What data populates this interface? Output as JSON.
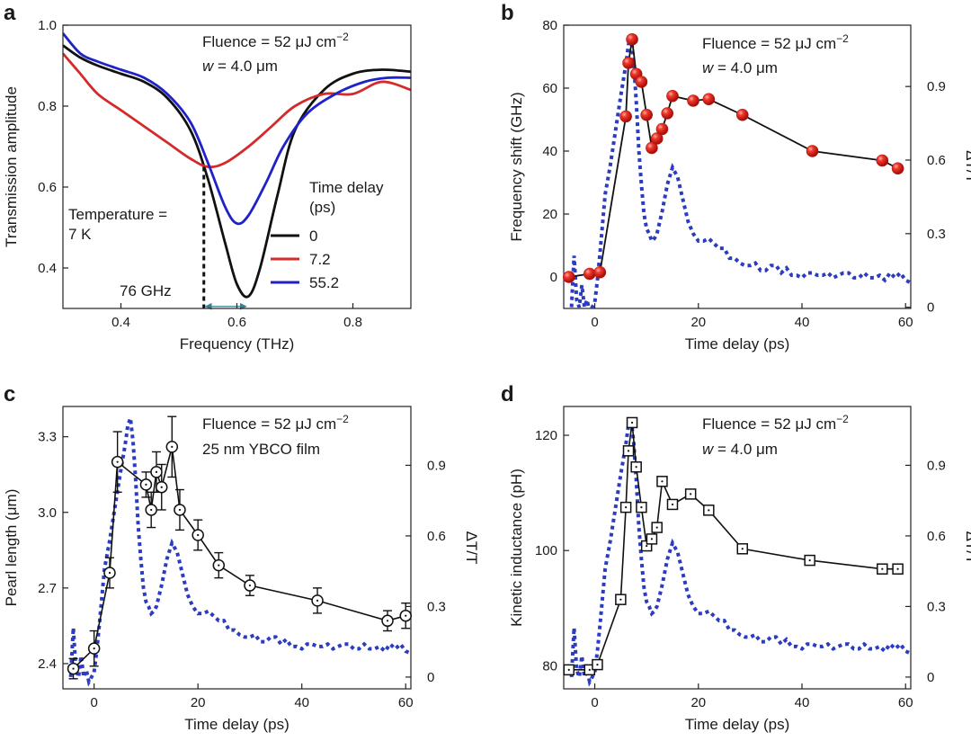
{
  "colors": {
    "black": "#111111",
    "red": "#d42a2a",
    "red_marker": "#e8261f",
    "blue": "#1f22c8",
    "dotted_blue": "#2b3cc0",
    "axis": "#222222"
  },
  "chart_data": [
    {
      "panel": "a",
      "type": "line",
      "xlabel": "Frequency (THz)",
      "ylabel": "Transmission amplitude",
      "xlim": [
        0.3,
        0.9
      ],
      "ylim": [
        0.3,
        1.0
      ],
      "xticks": [
        0.4,
        0.6,
        0.8
      ],
      "xtick_labels": [
        "0.4",
        "0.6",
        "0.8"
      ],
      "yticks": [
        0.4,
        0.6,
        0.8,
        1.0
      ],
      "ytick_labels": [
        "0.4",
        "0.6",
        "0.8",
        "1.0"
      ],
      "annotations": {
        "fluence_prefix": "Fluence = 52 μJ cm",
        "fluence_exp": "−2",
        "width_var": "w",
        "width_rest": " = 4.0 μm",
        "temperature_line1": "Temperature =",
        "temperature_line2": "7 K",
        "shift_label": "76 GHz"
      },
      "legend": {
        "title_line1": "Time delay",
        "title_line2": "(ps)",
        "entries": [
          "0",
          "7.2",
          "55.2"
        ],
        "placement": "right"
      },
      "series": [
        {
          "name": "0",
          "color": "black",
          "x": [
            0.3,
            0.33,
            0.36,
            0.4,
            0.44,
            0.48,
            0.52,
            0.55,
            0.58,
            0.6,
            0.62,
            0.64,
            0.67,
            0.7,
            0.75,
            0.8,
            0.85,
            0.9
          ],
          "y": [
            0.95,
            0.92,
            0.9,
            0.88,
            0.86,
            0.82,
            0.74,
            0.62,
            0.46,
            0.36,
            0.33,
            0.4,
            0.58,
            0.74,
            0.84,
            0.88,
            0.89,
            0.885
          ]
        },
        {
          "name": "7.2",
          "color": "red",
          "x": [
            0.3,
            0.33,
            0.36,
            0.4,
            0.44,
            0.48,
            0.52,
            0.55,
            0.58,
            0.62,
            0.66,
            0.7,
            0.75,
            0.8,
            0.85,
            0.9
          ],
          "y": [
            0.93,
            0.88,
            0.83,
            0.79,
            0.75,
            0.71,
            0.67,
            0.65,
            0.66,
            0.7,
            0.75,
            0.8,
            0.83,
            0.83,
            0.86,
            0.84
          ]
        },
        {
          "name": "55.2",
          "color": "blue",
          "x": [
            0.3,
            0.33,
            0.36,
            0.4,
            0.44,
            0.48,
            0.52,
            0.55,
            0.58,
            0.6,
            0.62,
            0.65,
            0.68,
            0.72,
            0.77,
            0.82,
            0.86,
            0.9
          ],
          "y": [
            0.98,
            0.93,
            0.91,
            0.89,
            0.87,
            0.83,
            0.76,
            0.66,
            0.55,
            0.51,
            0.53,
            0.61,
            0.7,
            0.78,
            0.83,
            0.86,
            0.87,
            0.87
          ]
        }
      ],
      "markers": {
        "dashed_x": 0.543,
        "dashed_y_top": 0.65,
        "arrow_from": 0.543,
        "arrow_to": 0.619,
        "arrow_y": 0.305
      }
    },
    {
      "panel": "b",
      "type": "scatter+line",
      "xlabel": "Time delay (ps)",
      "ylabel": "Frequency shift (GHz)",
      "y2label": "ΔT/T",
      "xlim": [
        -6,
        61
      ],
      "ylim": [
        -10,
        80
      ],
      "y2lim": [
        -0.005,
        1.15
      ],
      "xticks": [
        0,
        20,
        40,
        60
      ],
      "xtick_labels": [
        "0",
        "20",
        "40",
        "60"
      ],
      "yticks": [
        0,
        20,
        40,
        60,
        80
      ],
      "ytick_labels": [
        "0",
        "20",
        "40",
        "60",
        "80"
      ],
      "y2ticks": [
        0,
        0.3,
        0.6,
        0.9
      ],
      "y2tick_labels": [
        "0",
        "0.3",
        "0.6",
        "0.9"
      ],
      "annotations": {
        "fluence_prefix": "Fluence = 52 μJ cm",
        "fluence_exp": "−2",
        "width_var": "w",
        "width_rest": " = 4.0 μm"
      },
      "series": [
        {
          "name": "Frequency shift",
          "marker": "red-sphere",
          "x": [
            -5,
            -1,
            1,
            6,
            6.5,
            7.2,
            8,
            9,
            10,
            11,
            12,
            13,
            14,
            15,
            19,
            22,
            28.5,
            42,
            55.5,
            58.5
          ],
          "y": [
            0,
            1,
            1.5,
            51,
            68,
            75.5,
            64.5,
            62,
            51.5,
            41,
            44,
            47,
            52,
            57.5,
            56,
            56.5,
            51.5,
            40,
            37,
            34.5
          ]
        }
      ],
      "dT_T": {
        "x": [
          -4.5,
          -4,
          -3.5,
          -3,
          -2.5,
          -2,
          -1.5,
          -1,
          -0.5,
          0,
          0.5,
          1,
          1.5,
          2,
          3,
          4,
          5,
          6,
          6.5,
          7,
          7.5,
          8,
          8.5,
          9,
          9.5,
          10,
          10.5,
          11,
          11.5,
          12,
          13,
          14,
          15,
          16,
          17,
          18,
          19,
          20,
          21,
          22,
          23,
          24,
          25,
          26,
          27,
          28,
          29,
          30,
          31,
          32,
          33,
          34,
          35,
          36,
          37,
          38,
          39,
          40,
          41,
          42,
          43,
          44,
          45,
          46,
          47,
          48,
          49,
          50,
          51,
          52,
          53,
          54,
          55,
          56,
          57,
          58,
          59,
          60,
          61
        ],
        "y": [
          0.0,
          0.21,
          0.03,
          0.0,
          0.09,
          0.0,
          0.03,
          -0.02,
          0.0,
          0.02,
          0.11,
          0.22,
          0.34,
          0.46,
          0.58,
          0.72,
          0.86,
          0.99,
          1.07,
          1.1,
          1.0,
          0.84,
          0.64,
          0.5,
          0.38,
          0.32,
          0.3,
          0.27,
          0.28,
          0.3,
          0.39,
          0.5,
          0.57,
          0.53,
          0.44,
          0.35,
          0.3,
          0.27,
          0.27,
          0.28,
          0.26,
          0.24,
          0.24,
          0.2,
          0.2,
          0.18,
          0.17,
          0.17,
          0.18,
          0.15,
          0.15,
          0.17,
          0.17,
          0.14,
          0.16,
          0.13,
          0.13,
          0.12,
          0.14,
          0.14,
          0.13,
          0.13,
          0.14,
          0.12,
          0.13,
          0.14,
          0.14,
          0.12,
          0.12,
          0.14,
          0.12,
          0.12,
          0.13,
          0.11,
          0.14,
          0.12,
          0.14,
          0.11,
          0.1
        ]
      }
    },
    {
      "panel": "c",
      "type": "scatter+line",
      "xlabel": "Time delay (ps)",
      "ylabel": "Pearl length (μm)",
      "y2label": "ΔT/T",
      "xlim": [
        -6,
        61
      ],
      "ylim": [
        2.3,
        3.42
      ],
      "y2lim": [
        -0.05,
        1.15
      ],
      "xticks": [
        0,
        20,
        40,
        60
      ],
      "xtick_labels": [
        "0",
        "20",
        "40",
        "60"
      ],
      "yticks": [
        2.4,
        2.7,
        3.0,
        3.3
      ],
      "ytick_labels": [
        "2.4",
        "2.7",
        "3.0",
        "3.3"
      ],
      "y2ticks": [
        0,
        0.3,
        0.6,
        0.9
      ],
      "y2tick_labels": [
        "0",
        "0.3",
        "0.6",
        "0.9"
      ],
      "annotations": {
        "fluence_prefix": "Fluence = 52 μJ cm",
        "fluence_exp": "−2",
        "film": "25 nm YBCO film"
      },
      "series": [
        {
          "name": "Pearl length",
          "marker": "open-circle",
          "x": [
            -4,
            0,
            3,
            4.5,
            10,
            11,
            12,
            13,
            15,
            16.5,
            20,
            24,
            30,
            43,
            56.5,
            60
          ],
          "y": [
            2.38,
            2.46,
            2.76,
            3.2,
            3.11,
            3.01,
            3.16,
            3.1,
            3.26,
            3.01,
            2.91,
            2.79,
            2.71,
            2.65,
            2.57,
            2.59
          ],
          "err": [
            0.04,
            0.07,
            0.06,
            0.12,
            0.05,
            0.07,
            0.08,
            0.09,
            0.12,
            0.08,
            0.06,
            0.05,
            0.04,
            0.05,
            0.04,
            0.05
          ]
        }
      ],
      "dT_T": {
        "x": [
          -4.5,
          -4,
          -3.5,
          -3,
          -2.5,
          -2,
          -1.5,
          -1,
          -0.5,
          0,
          0.5,
          1,
          1.5,
          2,
          3,
          4,
          5,
          6,
          6.5,
          7,
          7.5,
          8,
          8.5,
          9,
          9.5,
          10,
          10.5,
          11,
          11.5,
          12,
          13,
          14,
          15,
          16,
          17,
          18,
          19,
          20,
          21,
          22,
          23,
          24,
          25,
          26,
          27,
          28,
          29,
          30,
          31,
          32,
          33,
          34,
          35,
          36,
          37,
          38,
          39,
          40,
          41,
          42,
          43,
          44,
          45,
          46,
          47,
          48,
          49,
          50,
          51,
          52,
          53,
          54,
          55,
          56,
          57,
          58,
          59,
          60,
          61
        ],
        "y": [
          0.0,
          0.21,
          0.03,
          0.0,
          0.09,
          0.0,
          0.03,
          -0.02,
          0.0,
          0.02,
          0.11,
          0.22,
          0.34,
          0.46,
          0.58,
          0.72,
          0.86,
          0.99,
          1.07,
          1.1,
          1.0,
          0.84,
          0.64,
          0.5,
          0.38,
          0.32,
          0.3,
          0.27,
          0.28,
          0.3,
          0.39,
          0.5,
          0.57,
          0.53,
          0.44,
          0.35,
          0.3,
          0.27,
          0.27,
          0.28,
          0.26,
          0.24,
          0.24,
          0.2,
          0.2,
          0.18,
          0.17,
          0.17,
          0.18,
          0.15,
          0.15,
          0.17,
          0.17,
          0.14,
          0.16,
          0.13,
          0.13,
          0.12,
          0.14,
          0.14,
          0.13,
          0.13,
          0.14,
          0.12,
          0.13,
          0.14,
          0.14,
          0.12,
          0.12,
          0.14,
          0.12,
          0.12,
          0.13,
          0.11,
          0.14,
          0.12,
          0.14,
          0.11,
          0.1
        ]
      }
    },
    {
      "panel": "d",
      "type": "scatter+line",
      "xlabel": "Time delay (ps)",
      "ylabel": "Kinetic inductance (pH)",
      "y2label": "ΔT/T",
      "xlim": [
        -6,
        61
      ],
      "ylim": [
        76,
        125
      ],
      "y2lim": [
        -0.05,
        1.15
      ],
      "xticks": [
        0,
        20,
        40,
        60
      ],
      "xtick_labels": [
        "0",
        "20",
        "40",
        "60"
      ],
      "yticks": [
        80,
        100,
        120
      ],
      "ytick_labels": [
        "80",
        "100",
        "120"
      ],
      "y2ticks": [
        0,
        0.3,
        0.6,
        0.9
      ],
      "y2tick_labels": [
        "0",
        "0.3",
        "0.6",
        "0.9"
      ],
      "annotations": {
        "fluence_prefix": "Fluence = 52 μJ cm",
        "fluence_exp": "−2",
        "width_var": "w",
        "width_rest": " = 4.0 μm"
      },
      "series": [
        {
          "name": "Kinetic inductance",
          "marker": "open-square",
          "x": [
            -5,
            -1,
            0.5,
            5,
            6,
            6.5,
            7.2,
            8,
            9,
            10,
            11,
            12,
            13,
            15,
            18.5,
            22,
            28.5,
            41.5,
            55.5,
            58.5
          ],
          "y": [
            79.3,
            79.3,
            80.2,
            91.5,
            107.5,
            117.3,
            122.2,
            114.5,
            107.5,
            100.8,
            102,
            104,
            112,
            108,
            109.8,
            107,
            100.3,
            98.3,
            96.8,
            96.8
          ]
        }
      ],
      "dT_T": {
        "x": [
          -4.5,
          -4,
          -3.5,
          -3,
          -2.5,
          -2,
          -1.5,
          -1,
          -0.5,
          0,
          0.5,
          1,
          1.5,
          2,
          3,
          4,
          5,
          6,
          6.5,
          7,
          7.5,
          8,
          8.5,
          9,
          9.5,
          10,
          10.5,
          11,
          11.5,
          12,
          13,
          14,
          15,
          16,
          17,
          18,
          19,
          20,
          21,
          22,
          23,
          24,
          25,
          26,
          27,
          28,
          29,
          30,
          31,
          32,
          33,
          34,
          35,
          36,
          37,
          38,
          39,
          40,
          41,
          42,
          43,
          44,
          45,
          46,
          47,
          48,
          49,
          50,
          51,
          52,
          53,
          54,
          55,
          56,
          57,
          58,
          59,
          60,
          61
        ],
        "y": [
          0.0,
          0.21,
          0.03,
          0.0,
          0.09,
          0.0,
          0.03,
          -0.02,
          0.0,
          0.02,
          0.11,
          0.22,
          0.34,
          0.46,
          0.58,
          0.72,
          0.86,
          0.99,
          1.07,
          1.1,
          1.0,
          0.84,
          0.64,
          0.5,
          0.38,
          0.32,
          0.3,
          0.27,
          0.28,
          0.3,
          0.39,
          0.5,
          0.57,
          0.53,
          0.44,
          0.35,
          0.3,
          0.27,
          0.27,
          0.28,
          0.26,
          0.24,
          0.24,
          0.2,
          0.2,
          0.18,
          0.17,
          0.17,
          0.18,
          0.15,
          0.15,
          0.17,
          0.17,
          0.14,
          0.16,
          0.13,
          0.13,
          0.12,
          0.14,
          0.14,
          0.13,
          0.13,
          0.14,
          0.12,
          0.13,
          0.14,
          0.14,
          0.12,
          0.12,
          0.14,
          0.12,
          0.12,
          0.13,
          0.11,
          0.14,
          0.12,
          0.14,
          0.11,
          0.1
        ]
      }
    }
  ]
}
